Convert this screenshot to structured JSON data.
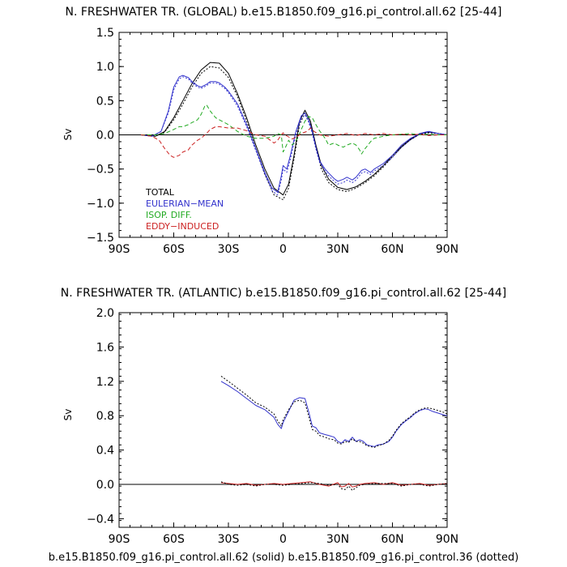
{
  "colors": {
    "total": "#000000",
    "eulerian_mean": "#3333cc",
    "isop_diff": "#22aa22",
    "eddy_induced": "#cc2222",
    "zero_line": "#000000"
  },
  "footer": "b.e15.B1850.f09_g16.pi_control.all.62 (solid) b.e15.B1850.f09_g16.pi_control.36 (dotted)",
  "chart_data": [
    {
      "type": "line",
      "title": "N. FRESHWATER TR. (GLOBAL) b.e15.B1850.f09_g16.pi_control.all.62 [25-44]",
      "xlabel": "",
      "ylabel": "Sv",
      "xlim": [
        -90,
        90
      ],
      "ylim": [
        -1.5,
        1.5
      ],
      "yticks": [
        -1.5,
        -1.0,
        -0.5,
        0.0,
        0.5,
        1.0,
        1.5
      ],
      "ytick_labels": [
        "−1.5",
        "−1.0",
        "−0.5",
        "0.0",
        "0.5",
        "1.0",
        "1.5"
      ],
      "xticks": [
        -90,
        -60,
        -30,
        0,
        30,
        60,
        90
      ],
      "xtick_labels": [
        "90S",
        "60S",
        "30S",
        "0",
        "30N",
        "60N",
        "90N"
      ],
      "zero_line": true,
      "legend": {
        "placement": "lower-left",
        "entries": [
          {
            "label": "TOTAL",
            "color_key": "total"
          },
          {
            "label": "EULERIAN−MEAN",
            "color_key": "eulerian_mean"
          },
          {
            "label": "ISOP. DIFF.",
            "color_key": "isop_diff"
          },
          {
            "label": "EDDY−INDUCED",
            "color_key": "eddy_induced"
          }
        ]
      },
      "series": [
        {
          "color_key": "total",
          "style": "solid",
          "x": [
            -78,
            -70,
            -65,
            -60,
            -55,
            -50,
            -45,
            -40,
            -35,
            -30,
            -25,
            -20,
            -15,
            -10,
            -5,
            0,
            3,
            6,
            9,
            12,
            15,
            18,
            21,
            25,
            30,
            35,
            40,
            45,
            50,
            55,
            60,
            65,
            70,
            75,
            80,
            85,
            90
          ],
          "y": [
            0,
            -0.02,
            0.05,
            0.25,
            0.5,
            0.75,
            0.95,
            1.06,
            1.05,
            0.9,
            0.6,
            0.25,
            -0.15,
            -0.5,
            -0.78,
            -0.88,
            -0.72,
            -0.3,
            0.2,
            0.36,
            0.2,
            -0.15,
            -0.45,
            -0.65,
            -0.77,
            -0.8,
            -0.76,
            -0.68,
            -0.58,
            -0.45,
            -0.3,
            -0.17,
            -0.06,
            0.02,
            0.04,
            0.02,
            0
          ]
        },
        {
          "color_key": "total",
          "style": "dotted",
          "x": [
            -78,
            -70,
            -65,
            -60,
            -55,
            -50,
            -45,
            -40,
            -35,
            -30,
            -25,
            -20,
            -15,
            -10,
            -5,
            0,
            3,
            6,
            9,
            12,
            15,
            18,
            21,
            25,
            30,
            35,
            40,
            45,
            50,
            55,
            60,
            65,
            70,
            75,
            80,
            85,
            90
          ],
          "y": [
            0,
            -0.02,
            0.04,
            0.22,
            0.45,
            0.7,
            0.9,
            1.0,
            0.98,
            0.84,
            0.56,
            0.2,
            -0.2,
            -0.58,
            -0.88,
            -0.95,
            -0.78,
            -0.35,
            0.15,
            0.32,
            0.16,
            -0.2,
            -0.5,
            -0.7,
            -0.8,
            -0.83,
            -0.78,
            -0.7,
            -0.6,
            -0.47,
            -0.32,
            -0.18,
            -0.07,
            0.01,
            0.03,
            0.02,
            0
          ]
        },
        {
          "color_key": "eulerian_mean",
          "style": "solid",
          "x": [
            -78,
            -72,
            -67,
            -63,
            -60,
            -57,
            -55,
            -52,
            -50,
            -47,
            -45,
            -42,
            -40,
            -37,
            -35,
            -32,
            -30,
            -25,
            -20,
            -15,
            -10,
            -6,
            -3,
            -1,
            0,
            2,
            4,
            7,
            10,
            12,
            14,
            16,
            18,
            20,
            23,
            25,
            28,
            30,
            33,
            35,
            38,
            40,
            43,
            45,
            48,
            50,
            55,
            60,
            65,
            70,
            75,
            78,
            80,
            85,
            90
          ],
          "y": [
            0,
            -0.02,
            0.05,
            0.35,
            0.7,
            0.85,
            0.87,
            0.84,
            0.78,
            0.72,
            0.7,
            0.74,
            0.78,
            0.78,
            0.76,
            0.7,
            0.64,
            0.45,
            0.15,
            -0.2,
            -0.55,
            -0.78,
            -0.84,
            -0.6,
            -0.45,
            -0.5,
            -0.3,
            0.05,
            0.28,
            0.32,
            0.22,
            0.05,
            -0.18,
            -0.38,
            -0.5,
            -0.56,
            -0.64,
            -0.68,
            -0.65,
            -0.62,
            -0.66,
            -0.62,
            -0.52,
            -0.5,
            -0.55,
            -0.5,
            -0.42,
            -0.3,
            -0.15,
            -0.05,
            0.02,
            0.04,
            0.05,
            0.02,
            0
          ]
        },
        {
          "color_key": "eulerian_mean",
          "style": "dotted",
          "x": [
            -78,
            -72,
            -67,
            -63,
            -60,
            -57,
            -55,
            -52,
            -50,
            -47,
            -45,
            -42,
            -40,
            -37,
            -35,
            -32,
            -30,
            -25,
            -20,
            -15,
            -10,
            -6,
            -3,
            -1,
            0,
            2,
            4,
            7,
            10,
            12,
            14,
            16,
            18,
            20,
            23,
            25,
            28,
            30,
            33,
            35,
            38,
            40,
            43,
            45,
            48,
            50,
            55,
            60,
            65,
            70,
            75,
            78,
            80,
            85,
            90
          ],
          "y": [
            0,
            -0.02,
            0.05,
            0.32,
            0.66,
            0.82,
            0.85,
            0.82,
            0.76,
            0.7,
            0.68,
            0.72,
            0.76,
            0.76,
            0.74,
            0.68,
            0.62,
            0.42,
            0.12,
            -0.23,
            -0.58,
            -0.82,
            -0.88,
            -0.66,
            -0.5,
            -0.55,
            -0.35,
            0.0,
            0.24,
            0.29,
            0.19,
            0.02,
            -0.2,
            -0.4,
            -0.53,
            -0.6,
            -0.68,
            -0.72,
            -0.7,
            -0.66,
            -0.7,
            -0.66,
            -0.56,
            -0.54,
            -0.58,
            -0.53,
            -0.45,
            -0.33,
            -0.18,
            -0.07,
            0.01,
            0.03,
            0.04,
            0.02,
            0
          ]
        },
        {
          "color_key": "isop_diff",
          "style": "dashed",
          "x": [
            -78,
            -70,
            -65,
            -60,
            -57,
            -55,
            -52,
            -50,
            -47,
            -45,
            -43,
            -42,
            -40,
            -37,
            -35,
            -30,
            -25,
            -20,
            -15,
            -10,
            -5,
            -3,
            -1,
            0,
            1,
            3,
            5,
            8,
            10,
            12,
            14,
            16,
            18,
            20,
            23,
            25,
            28,
            30,
            33,
            35,
            38,
            40,
            42,
            43,
            45,
            48,
            50,
            55,
            60,
            65,
            70,
            75,
            80,
            85,
            90
          ],
          "y": [
            0,
            0.0,
            0.02,
            0.08,
            0.12,
            0.12,
            0.15,
            0.18,
            0.22,
            0.3,
            0.42,
            0.44,
            0.35,
            0.25,
            0.22,
            0.15,
            0.05,
            -0.02,
            -0.05,
            -0.05,
            -0.02,
            0.02,
            0.0,
            -0.25,
            -0.2,
            -0.08,
            -0.15,
            -0.05,
            0.08,
            0.2,
            0.27,
            0.25,
            0.15,
            0.06,
            -0.05,
            -0.15,
            -0.12,
            -0.15,
            -0.18,
            -0.15,
            -0.12,
            -0.15,
            -0.22,
            -0.28,
            -0.2,
            -0.1,
            -0.05,
            -0.02,
            0.0,
            0.01,
            0.02,
            0.0,
            0.01,
            0.0,
            0
          ]
        },
        {
          "color_key": "eddy_induced",
          "style": "dashed",
          "x": [
            -78,
            -72,
            -68,
            -65,
            -62,
            -60,
            -57,
            -55,
            -52,
            -50,
            -47,
            -45,
            -42,
            -40,
            -37,
            -35,
            -30,
            -25,
            -20,
            -15,
            -10,
            -7,
            -5,
            -3,
            -1,
            0,
            1,
            3,
            5,
            8,
            10,
            13,
            15,
            17,
            20,
            25,
            30,
            35,
            40,
            45,
            50,
            55,
            60,
            65,
            70,
            75,
            80,
            85,
            90
          ],
          "y": [
            0,
            -0.02,
            -0.08,
            -0.2,
            -0.3,
            -0.33,
            -0.3,
            -0.25,
            -0.22,
            -0.15,
            -0.08,
            -0.05,
            0.02,
            0.08,
            0.12,
            0.12,
            0.1,
            0.1,
            0.06,
            0.0,
            -0.02,
            -0.08,
            -0.12,
            -0.08,
            0.0,
            0.03,
            0.0,
            -0.03,
            -0.06,
            -0.02,
            0.02,
            0.05,
            0.1,
            0.05,
            0.0,
            -0.02,
            0.0,
            0.02,
            -0.01,
            0.02,
            0.0,
            0.02,
            0.0,
            0.01,
            0.0,
            0.01,
            -0.01,
            0.0,
            0
          ]
        }
      ]
    },
    {
      "type": "line",
      "title": "N. FRESHWATER TR. (ATLANTIC) b.e15.B1850.f09_g16.pi_control.all.62 [25-44]",
      "xlabel": "",
      "ylabel": "Sv",
      "xlim": [
        -90,
        90
      ],
      "ylim": [
        -0.5,
        2.0
      ],
      "yticks": [
        -0.4,
        0.0,
        0.4,
        0.8,
        1.2,
        1.6,
        2.0
      ],
      "ytick_labels": [
        "−0.4",
        "0.0",
        "0.4",
        "0.8",
        "1.2",
        "1.6",
        "2.0"
      ],
      "xticks": [
        -90,
        -60,
        -30,
        0,
        30,
        60,
        90
      ],
      "xtick_labels": [
        "90S",
        "60S",
        "30S",
        "0",
        "30N",
        "60N",
        "90N"
      ],
      "zero_line": true,
      "series": [
        {
          "color_key": "eulerian_mean",
          "style": "solid",
          "x": [
            -34,
            -30,
            -25,
            -20,
            -15,
            -10,
            -5,
            -3,
            -1,
            0,
            3,
            6,
            9,
            12,
            14,
            16,
            18,
            20,
            23,
            25,
            28,
            30,
            32,
            34,
            36,
            38,
            40,
            42,
            44,
            46,
            48,
            50,
            52,
            55,
            58,
            60,
            62,
            65,
            68,
            70,
            72,
            75,
            78,
            80,
            82,
            85,
            88,
            90
          ],
          "y": [
            1.2,
            1.15,
            1.08,
            1.0,
            0.92,
            0.87,
            0.78,
            0.7,
            0.65,
            0.72,
            0.85,
            0.98,
            1.01,
            1.0,
            0.85,
            0.68,
            0.66,
            0.6,
            0.58,
            0.57,
            0.55,
            0.5,
            0.48,
            0.52,
            0.5,
            0.55,
            0.5,
            0.52,
            0.5,
            0.46,
            0.45,
            0.44,
            0.46,
            0.47,
            0.5,
            0.55,
            0.62,
            0.7,
            0.75,
            0.78,
            0.82,
            0.86,
            0.88,
            0.87,
            0.85,
            0.83,
            0.81,
            0.8
          ]
        },
        {
          "color_key": "total",
          "style": "dotted",
          "x": [
            -34,
            -30,
            -25,
            -20,
            -15,
            -10,
            -5,
            -3,
            -1,
            0,
            3,
            6,
            9,
            12,
            14,
            16,
            18,
            20,
            23,
            25,
            28,
            30,
            32,
            34,
            36,
            38,
            40,
            42,
            44,
            46,
            48,
            50,
            52,
            55,
            58,
            60,
            62,
            65,
            68,
            70,
            72,
            75,
            78,
            80,
            82,
            85,
            88,
            90
          ],
          "y": [
            1.26,
            1.2,
            1.12,
            1.04,
            0.95,
            0.9,
            0.82,
            0.74,
            0.68,
            0.75,
            0.87,
            0.96,
            0.98,
            0.95,
            0.8,
            0.64,
            0.62,
            0.57,
            0.55,
            0.53,
            0.52,
            0.48,
            0.47,
            0.5,
            0.49,
            0.53,
            0.5,
            0.5,
            0.48,
            0.45,
            0.44,
            0.43,
            0.45,
            0.47,
            0.51,
            0.56,
            0.63,
            0.71,
            0.76,
            0.79,
            0.83,
            0.87,
            0.89,
            0.89,
            0.88,
            0.86,
            0.84,
            0.82
          ]
        },
        {
          "color_key": "eddy_induced",
          "style": "solid",
          "x": [
            -34,
            -30,
            -25,
            -20,
            -15,
            -10,
            -5,
            0,
            5,
            10,
            15,
            20,
            25,
            30,
            32,
            34,
            36,
            38,
            40,
            42,
            45,
            50,
            55,
            60,
            65,
            70,
            75,
            80,
            85,
            90
          ],
          "y": [
            0.02,
            0.01,
            0.0,
            0.01,
            -0.01,
            0.0,
            0.01,
            0.0,
            0.01,
            0.02,
            0.03,
            0.0,
            -0.02,
            0.02,
            -0.03,
            -0.02,
            0.01,
            -0.03,
            -0.02,
            0.0,
            0.01,
            0.02,
            0.0,
            0.02,
            -0.01,
            0.0,
            0.01,
            -0.01,
            0.0,
            0.01
          ]
        },
        {
          "color_key": "total",
          "style": "dotted",
          "x": [
            -34,
            -30,
            -25,
            -20,
            -15,
            -10,
            -5,
            0,
            5,
            10,
            15,
            20,
            25,
            30,
            32,
            34,
            36,
            38,
            40,
            42,
            45,
            50,
            55,
            60,
            65,
            70,
            75,
            80,
            85,
            90
          ],
          "y": [
            0.03,
            0.0,
            -0.01,
            0.0,
            -0.02,
            0.0,
            0.0,
            -0.01,
            0.0,
            0.01,
            0.02,
            0.01,
            -0.01,
            0.0,
            -0.05,
            -0.06,
            -0.02,
            -0.07,
            -0.04,
            -0.01,
            0.0,
            0.01,
            0.01,
            0.01,
            -0.02,
            0.0,
            0.0,
            -0.02,
            0.0,
            0.01
          ]
        }
      ]
    }
  ]
}
